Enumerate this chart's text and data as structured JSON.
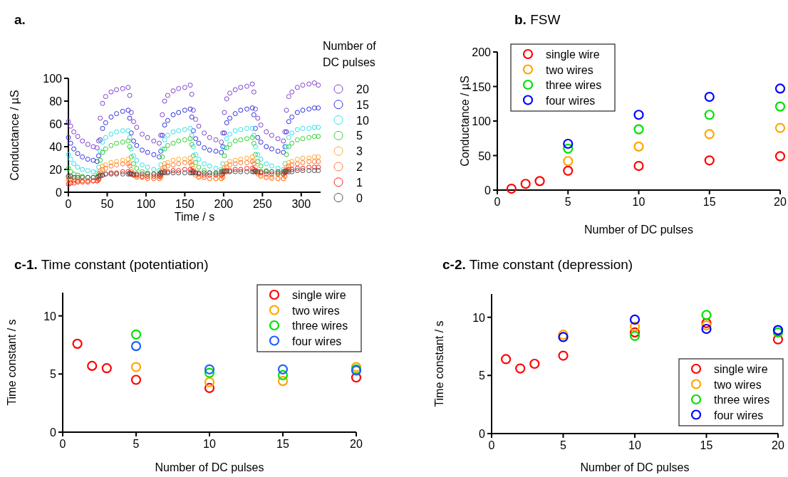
{
  "chart_data": [
    {
      "type": "scatter",
      "title": "a.",
      "xlabel": "Time / s",
      "ylabel": "Conductance / µS",
      "legend_title": "Number of DC pulses",
      "legend": "right",
      "marker": "circle",
      "xlim": [
        0,
        325
      ],
      "xticks": [
        0,
        50,
        100,
        150,
        200,
        250,
        300
      ],
      "ylim": [
        0,
        100
      ],
      "yticks": [
        0,
        20,
        40,
        60,
        80,
        100
      ],
      "x": [
        0,
        3,
        7,
        12,
        18,
        25,
        32,
        37,
        39,
        41,
        44,
        48,
        55,
        62,
        70,
        77,
        79,
        81,
        84,
        88,
        95,
        102,
        110,
        117,
        119,
        121,
        124,
        128,
        135,
        142,
        150,
        157,
        159,
        161,
        164,
        168,
        175,
        182,
        190,
        197,
        199,
        201,
        204,
        208,
        215,
        222,
        230,
        237,
        239,
        241,
        244,
        248,
        255,
        262,
        270,
        277,
        279,
        281,
        284,
        288,
        295,
        302,
        310,
        317,
        322
      ],
      "series": [
        {
          "name": "20",
          "color": "#8040d0",
          "values": [
            62,
            58,
            53,
            49,
            45,
            42,
            40,
            39,
            45,
            65,
            78,
            84,
            88,
            90,
            91,
            92,
            85,
            70,
            62,
            57,
            51,
            48,
            45,
            43,
            50,
            68,
            80,
            85,
            89,
            91,
            92,
            94,
            86,
            72,
            64,
            58,
            52,
            48,
            46,
            44,
            52,
            70,
            82,
            87,
            90,
            92,
            93,
            95,
            88,
            73,
            65,
            59,
            53,
            50,
            47,
            45,
            53,
            72,
            84,
            88,
            92,
            94,
            95,
            96,
            94
          ]
        },
        {
          "name": "15",
          "color": "#3030e0",
          "values": [
            48,
            43,
            38,
            34,
            31,
            29,
            28,
            27,
            32,
            46,
            56,
            61,
            66,
            69,
            71,
            72,
            65,
            52,
            45,
            41,
            37,
            35,
            33,
            31,
            36,
            50,
            59,
            63,
            68,
            70,
            72,
            73,
            66,
            54,
            47,
            43,
            39,
            37,
            36,
            35,
            40,
            52,
            61,
            65,
            69,
            72,
            73,
            74,
            68,
            56,
            48,
            44,
            40,
            38,
            36,
            35,
            40,
            53,
            62,
            66,
            70,
            72,
            73,
            74,
            74
          ]
        },
        {
          "name": "10",
          "color": "#30e0e8",
          "values": [
            33,
            29,
            25,
            22,
            20,
            19,
            18,
            17,
            22,
            36,
            44,
            48,
            51,
            53,
            54,
            54,
            48,
            38,
            32,
            28,
            24,
            22,
            20,
            19,
            24,
            38,
            46,
            50,
            53,
            54,
            55,
            56,
            50,
            40,
            33,
            29,
            25,
            23,
            21,
            20,
            25,
            39,
            47,
            51,
            54,
            55,
            56,
            56,
            50,
            40,
            33,
            29,
            25,
            23,
            21,
            20,
            25,
            40,
            48,
            52,
            55,
            56,
            56,
            57,
            57
          ]
        },
        {
          "name": "5",
          "color": "#30d030",
          "values": [
            21,
            18,
            16,
            15,
            14,
            13,
            13,
            13,
            16,
            28,
            35,
            38,
            41,
            43,
            44,
            45,
            40,
            31,
            25,
            21,
            18,
            17,
            16,
            15,
            18,
            31,
            38,
            41,
            43,
            45,
            46,
            47,
            42,
            32,
            26,
            22,
            19,
            17,
            16,
            16,
            19,
            32,
            39,
            42,
            45,
            46,
            47,
            48,
            43,
            33,
            27,
            23,
            19,
            18,
            17,
            16,
            19,
            33,
            40,
            43,
            46,
            47,
            48,
            49,
            49
          ]
        },
        {
          "name": "3",
          "color": "#ffa830",
          "values": [
            13,
            12,
            11,
            11,
            10,
            10,
            10,
            10,
            12,
            19,
            23,
            24,
            26,
            27,
            28,
            29,
            26,
            20,
            16,
            14,
            13,
            12,
            12,
            12,
            14,
            21,
            25,
            26,
            28,
            29,
            29,
            30,
            27,
            21,
            17,
            14,
            13,
            12,
            12,
            12,
            14,
            21,
            25,
            27,
            28,
            29,
            30,
            31,
            28,
            22,
            17,
            15,
            13,
            12,
            12,
            12,
            14,
            22,
            26,
            27,
            29,
            30,
            30,
            31,
            31
          ]
        },
        {
          "name": "2",
          "color": "#ff7830",
          "values": [
            11,
            11,
            10,
            10,
            10,
            10,
            10,
            10,
            12,
            17,
            20,
            21,
            23,
            24,
            25,
            25,
            23,
            18,
            15,
            13,
            13,
            12,
            12,
            12,
            13,
            19,
            22,
            23,
            24,
            25,
            26,
            26,
            24,
            19,
            15,
            13,
            13,
            12,
            12,
            12,
            13,
            19,
            22,
            24,
            25,
            26,
            26,
            27,
            25,
            19,
            16,
            14,
            13,
            13,
            12,
            12,
            14,
            20,
            23,
            24,
            25,
            26,
            27,
            27,
            27
          ]
        },
        {
          "name": "1",
          "color": "#ff2020",
          "values": [
            7,
            8,
            8,
            9,
            9,
            9,
            10,
            10,
            11,
            14,
            15,
            16,
            17,
            17,
            18,
            18,
            17,
            16,
            15,
            15,
            14,
            14,
            14,
            14,
            15,
            17,
            18,
            18,
            19,
            19,
            20,
            20,
            19,
            18,
            17,
            16,
            15,
            15,
            15,
            15,
            16,
            18,
            19,
            19,
            20,
            20,
            21,
            21,
            20,
            19,
            18,
            17,
            16,
            16,
            16,
            16,
            17,
            19,
            20,
            20,
            21,
            21,
            22,
            22,
            22
          ]
        },
        {
          "name": "0",
          "color": "#505050",
          "values": [
            14,
            14,
            13,
            13,
            13,
            13,
            13,
            13,
            14,
            15,
            15,
            16,
            16,
            16,
            16,
            16,
            16,
            16,
            16,
            16,
            16,
            16,
            16,
            16,
            17,
            17,
            17,
            17,
            17,
            17,
            17,
            17,
            17,
            17,
            17,
            17,
            17,
            17,
            17,
            18,
            18,
            18,
            18,
            18,
            18,
            18,
            18,
            18,
            18,
            18,
            18,
            18,
            18,
            18,
            18,
            18,
            18,
            18,
            18,
            18,
            19,
            19,
            19,
            19,
            19
          ]
        }
      ]
    },
    {
      "type": "scatter",
      "title": "b. FSW",
      "xlabel": "Number of DC pulses",
      "ylabel": "Conductance / µS",
      "legend": "top left",
      "marker": "circle",
      "xlim": [
        0,
        20
      ],
      "xticks": [
        0,
        5,
        10,
        15,
        20
      ],
      "ylim": [
        0,
        200
      ],
      "yticks": [
        0,
        50,
        100,
        150,
        200
      ],
      "series": [
        {
          "name": "single wire",
          "color": "#ff0000",
          "x": [
            1,
            2,
            3,
            5,
            10,
            15,
            20
          ],
          "values": [
            2,
            9,
            13,
            28,
            35,
            43,
            49
          ]
        },
        {
          "name": "two wires",
          "color": "#ffa500",
          "x": [
            5,
            10,
            15,
            20
          ],
          "values": [
            42,
            63,
            81,
            90
          ]
        },
        {
          "name": "three wires",
          "color": "#00e000",
          "x": [
            5,
            10,
            15,
            20
          ],
          "values": [
            60,
            88,
            109,
            121
          ]
        },
        {
          "name": "four wires",
          "color": "#0000ff",
          "x": [
            5,
            10,
            15,
            20
          ],
          "values": [
            67,
            109,
            135,
            147
          ]
        }
      ]
    },
    {
      "type": "scatter",
      "title": "c-1. Time constant (potentiation)",
      "xlabel": "Number of DC pulses",
      "ylabel": "Time constant / s",
      "legend": "top right",
      "marker": "circle",
      "xlim": [
        0,
        20
      ],
      "xticks": [
        0,
        5,
        10,
        15,
        20
      ],
      "ylim": [
        0,
        12
      ],
      "yticks": [
        0,
        5,
        10
      ],
      "series": [
        {
          "name": "single wire",
          "color": "#ff0000",
          "x": [
            1,
            2,
            3,
            5,
            10,
            20
          ],
          "values": [
            7.6,
            5.7,
            5.5,
            4.5,
            3.8,
            4.7
          ]
        },
        {
          "name": "two wires",
          "color": "#ffa500",
          "x": [
            5,
            10,
            15,
            20
          ],
          "values": [
            5.6,
            4.3,
            4.4,
            5.6
          ]
        },
        {
          "name": "three wires",
          "color": "#00e000",
          "x": [
            5,
            10,
            15,
            20
          ],
          "values": [
            8.4,
            5.1,
            4.9,
            5.4
          ]
        },
        {
          "name": "four wires",
          "color": "#1f5fff",
          "x": [
            5,
            10,
            15,
            20
          ],
          "values": [
            7.4,
            5.4,
            5.4,
            5.3
          ]
        }
      ]
    },
    {
      "type": "scatter",
      "title": "c-2. Time constant (depression)",
      "xlabel": "Number of DC pulses",
      "ylabel": "Time constant / s",
      "legend": "bottom right",
      "marker": "circle",
      "xlim": [
        0,
        20
      ],
      "xticks": [
        0,
        5,
        10,
        15,
        20
      ],
      "ylim": [
        0,
        12
      ],
      "yticks": [
        0,
        5,
        10
      ],
      "series": [
        {
          "name": "single wire",
          "color": "#ff0000",
          "x": [
            1,
            2,
            3,
            5,
            10,
            15,
            20
          ],
          "values": [
            6.4,
            5.6,
            6.0,
            6.7,
            8.7,
            9.5,
            8.1
          ]
        },
        {
          "name": "two wires",
          "color": "#ffa500",
          "x": [
            5,
            10,
            15
          ],
          "values": [
            8.5,
            9.2,
            9.3
          ]
        },
        {
          "name": "three wires",
          "color": "#00e000",
          "x": [
            10,
            15,
            20
          ],
          "values": [
            8.4,
            10.2,
            8.7
          ]
        },
        {
          "name": "four wires",
          "color": "#0000ff",
          "x": [
            5,
            10,
            15,
            20
          ],
          "values": [
            8.3,
            9.8,
            9.0,
            8.9
          ]
        }
      ]
    }
  ]
}
